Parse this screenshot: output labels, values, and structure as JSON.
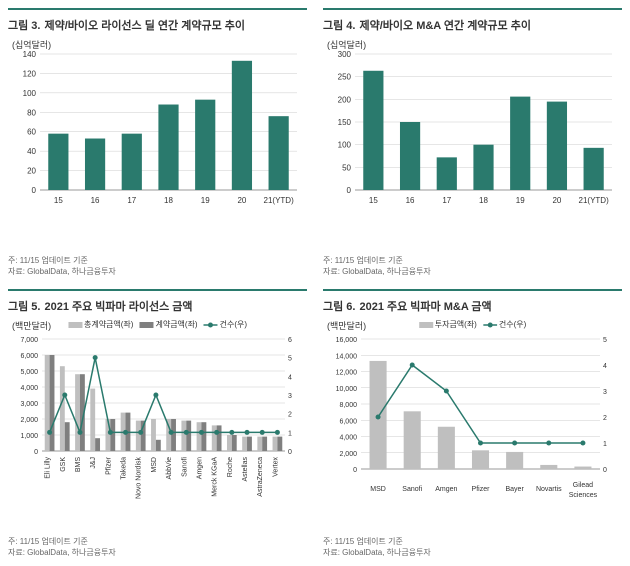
{
  "panels": {
    "p3": {
      "prefix": "그림 3.",
      "title": "제약/바이오 라이선스 딜 연간 계약규모 추이",
      "unit": "(십억달러)",
      "type": "bar",
      "categories": [
        "15",
        "16",
        "17",
        "18",
        "19",
        "20",
        "21(YTD)"
      ],
      "values": [
        58,
        53,
        58,
        88,
        93,
        133,
        76
      ],
      "bar_color": "#2a7a6d",
      "y_ticks": [
        0,
        20,
        40,
        60,
        80,
        100,
        120,
        140
      ],
      "ylim": [
        0,
        140
      ],
      "grid_color": "#cccccc",
      "bg": "#ffffff",
      "note": "주: 11/15 업데이트 기준",
      "source": "자료: GlobalData, 하나금융투자"
    },
    "p4": {
      "prefix": "그림 4.",
      "title": "제약/바이오 M&A 연간 계약규모 추이",
      "unit": "(십억달러)",
      "type": "bar",
      "categories": [
        "15",
        "16",
        "17",
        "18",
        "19",
        "20",
        "21(YTD)"
      ],
      "values": [
        263,
        150,
        72,
        100,
        206,
        195,
        93
      ],
      "bar_color": "#2a7a6d",
      "y_ticks": [
        0,
        50,
        100,
        150,
        200,
        250,
        300
      ],
      "ylim": [
        0,
        300
      ],
      "grid_color": "#cccccc",
      "bg": "#ffffff",
      "note": "주: 11/15 업데이트 기준",
      "source": "자료: GlobalData, 하나금융투자"
    },
    "p5": {
      "prefix": "그림 5.",
      "title": "2021 주요 빅파마 라이선스 금액",
      "unit_left": "(백만달러)",
      "type": "bar2-line",
      "categories": [
        "Eli Lilly",
        "GSK",
        "BMS",
        "J&J",
        "Pfizer",
        "Takeda",
        "Novo Nordisk",
        "MSD",
        "AbbVie",
        "Sanofi",
        "Amgen",
        "Merck KGaA",
        "Roche",
        "Astellas",
        "AstraZeneca",
        "Vertex"
      ],
      "bars_total": [
        6000,
        5300,
        4800,
        3900,
        2000,
        2400,
        1900,
        2000,
        2000,
        1900,
        1800,
        1600,
        1000,
        900,
        900,
        900
      ],
      "bars_avg": [
        6000,
        1800,
        4800,
        800,
        2000,
        2400,
        1900,
        700,
        2000,
        1900,
        1800,
        1600,
        1000,
        900,
        900,
        900
      ],
      "line_count": [
        1,
        3,
        1,
        5,
        1,
        1,
        1,
        3,
        1,
        1,
        1,
        1,
        1,
        1,
        1,
        1
      ],
      "bar_total_color": "#bfbfbf",
      "bar_avg_color": "#7f7f7f",
      "line_color": "#2a7a6d",
      "y_ticks_left": [
        0,
        1000,
        2000,
        3000,
        4000,
        5000,
        6000,
        7000
      ],
      "ylim_left": [
        0,
        7000
      ],
      "y_ticks_right": [
        0,
        1,
        2,
        3,
        4,
        5,
        6
      ],
      "ylim_right": [
        0,
        6
      ],
      "legend_total": "총계약금액(좌)",
      "legend_avg": "계약금액(좌)",
      "legend_count": "건수(우)",
      "note": "주: 11/15 업데이트 기준",
      "source": "자료: GlobalData, 하나금융투자"
    },
    "p6": {
      "prefix": "그림 6.",
      "title": "2021 주요 빅파마 M&A 금액",
      "unit_left": "(백만달러)",
      "type": "bar-line",
      "categories": [
        "MSD",
        "Sanofi",
        "Amgen",
        "Pfizer",
        "Bayer",
        "Novartis",
        "Gilead Sciences"
      ],
      "bars": [
        13300,
        7100,
        5200,
        2300,
        2100,
        500,
        300
      ],
      "line_count": [
        2,
        4,
        3,
        1,
        1,
        1,
        1
      ],
      "bar_color": "#bfbfbf",
      "line_color": "#2a7a6d",
      "y_ticks_left": [
        0,
        2000,
        4000,
        6000,
        8000,
        10000,
        12000,
        14000,
        16000
      ],
      "ylim_left": [
        0,
        16000
      ],
      "y_ticks_right": [
        0,
        1,
        2,
        3,
        4,
        5
      ],
      "ylim_right": [
        0,
        5
      ],
      "legend_bar": "투자금액(좌)",
      "legend_count": "건수(우)",
      "note": "주: 11/15 업데이트 기준",
      "source": "자료: GlobalData, 하나금융투자"
    }
  }
}
